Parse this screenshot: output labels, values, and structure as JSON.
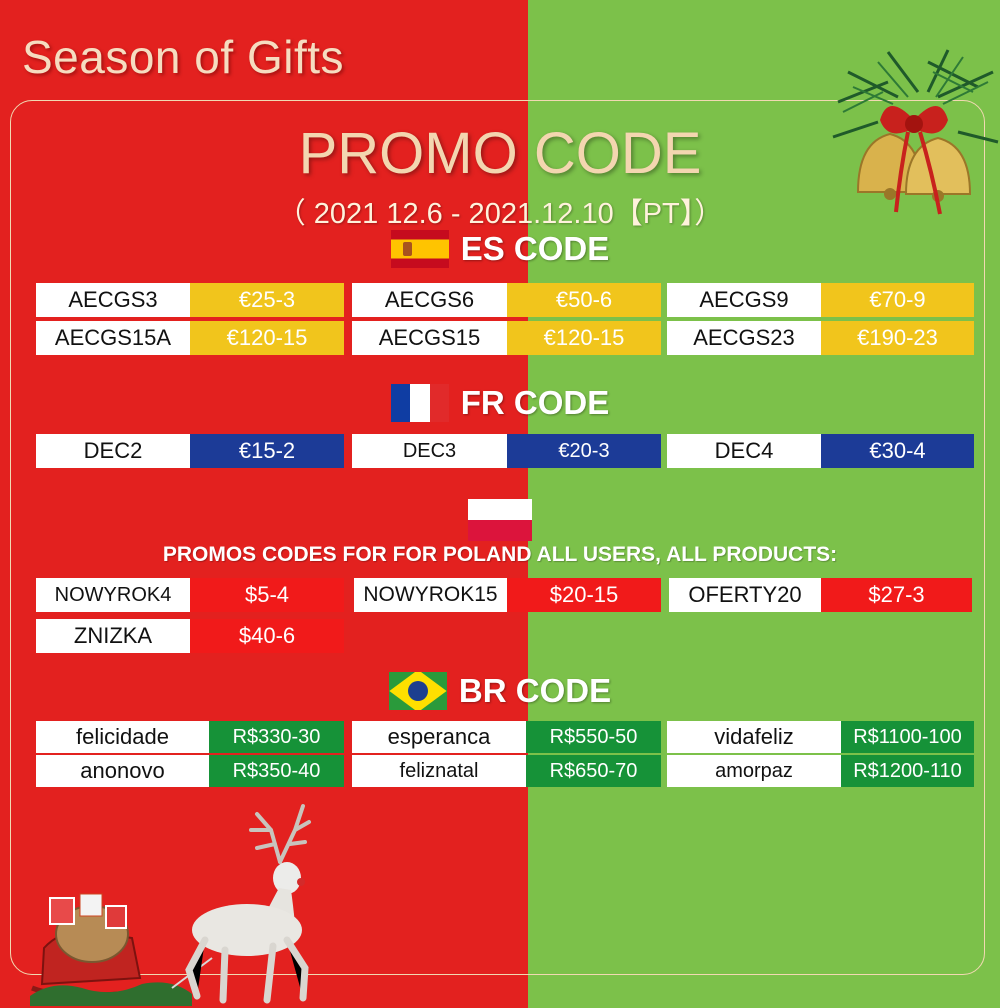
{
  "header": {
    "season_title": "Season of Gifts",
    "promo_title": "PROMO CODE",
    "dates": "（ 2021 12.6 - 2021.12.10【PT】）"
  },
  "colors": {
    "left_bg": "#e3211f",
    "right_bg": "#7cc14a",
    "es_value": "#f1c51c",
    "fr_value": "#1c3b97",
    "pl_value": "#f11a1a",
    "br_value": "#169238"
  },
  "es": {
    "flag_icon": "spain-flag-icon",
    "title": "ES CODE",
    "coupons": [
      {
        "code": "AECGS3",
        "value": "€25-3"
      },
      {
        "code": "AECGS6",
        "value": "€50-6"
      },
      {
        "code": "AECGS9",
        "value": "€70-9"
      },
      {
        "code": "AECGS15A",
        "value": "€120-15"
      },
      {
        "code": "AECGS15",
        "value": "€120-15"
      },
      {
        "code": "AECGS23",
        "value": "€190-23"
      }
    ]
  },
  "fr": {
    "flag_icon": "france-flag-icon",
    "title": "FR CODE",
    "coupons": [
      {
        "code": "DEC2",
        "value": "€15-2"
      },
      {
        "code": "DEC3",
        "value": "€20-3"
      },
      {
        "code": "DEC4",
        "value": "€30-4"
      }
    ]
  },
  "pl": {
    "flag_icon": "poland-flag-icon",
    "text": "PROMOS CODES FOR FOR POLAND ALL USERS, ALL PRODUCTS:",
    "coupons": [
      {
        "code": "NOWYROK4",
        "value": "$5-4"
      },
      {
        "code": "NOWYROK15",
        "value": "$20-15"
      },
      {
        "code": "OFERTY20",
        "value": "$27-3"
      },
      {
        "code": "ZNIZKA",
        "value": "$40-6"
      }
    ]
  },
  "br": {
    "flag_icon": "brazil-flag-icon",
    "title": "BR CODE",
    "coupons": [
      {
        "code": "felicidade",
        "value": "R$330-30"
      },
      {
        "code": "esperanca",
        "value": "R$550-50"
      },
      {
        "code": "vidafeliz",
        "value": "R$1100-100"
      },
      {
        "code": "anonovo",
        "value": "R$350-40"
      },
      {
        "code": "feliznatal",
        "value": "R$650-70"
      },
      {
        "code": "amorpaz",
        "value": "R$1200-110"
      }
    ]
  },
  "decorations": [
    "christmas-bells-icon",
    "reindeer-icon",
    "sleigh-icon"
  ]
}
